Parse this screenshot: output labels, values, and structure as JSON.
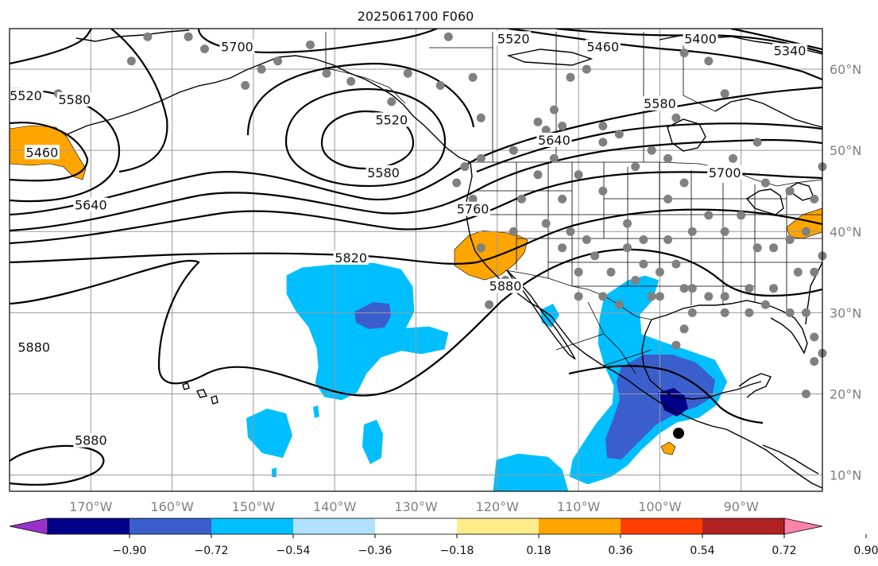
{
  "title": "2025061700 F060",
  "map": {
    "lon_range": [
      -180,
      -80
    ],
    "lat_range": [
      8,
      65
    ],
    "lon_ticks": [
      {
        "value": -170,
        "label": "170°W"
      },
      {
        "value": -160,
        "label": "160°W"
      },
      {
        "value": -150,
        "label": "150°W"
      },
      {
        "value": -140,
        "label": "140°W"
      },
      {
        "value": -130,
        "label": "130°W"
      },
      {
        "value": -120,
        "label": "120°W"
      },
      {
        "value": -110,
        "label": "110°W"
      },
      {
        "value": -100,
        "label": "100°W"
      },
      {
        "value": -90,
        "label": "90°W"
      }
    ],
    "lat_ticks": [
      {
        "value": 60,
        "label": "60°N"
      },
      {
        "value": 50,
        "label": "50°N"
      },
      {
        "value": 40,
        "label": "40°N"
      },
      {
        "value": 30,
        "label": "30°N"
      },
      {
        "value": 20,
        "label": "20°N"
      },
      {
        "value": 10,
        "label": "10°N"
      }
    ],
    "contour_labels": [
      {
        "text": "5700",
        "lon": -152,
        "lat": 62.5
      },
      {
        "text": "5520",
        "lon": -118,
        "lat": 63.5
      },
      {
        "text": "5460",
        "lon": -107,
        "lat": 62.5
      },
      {
        "text": "5400",
        "lon": -95,
        "lat": 63.5
      },
      {
        "text": "5340",
        "lon": -84,
        "lat": 62
      },
      {
        "text": "5520",
        "lon": -178,
        "lat": 56.5
      },
      {
        "text": "5580",
        "lon": -172,
        "lat": 56
      },
      {
        "text": "5460",
        "lon": -176,
        "lat": 49.5
      },
      {
        "text": "5520",
        "lon": -133,
        "lat": 53.5
      },
      {
        "text": "5580",
        "lon": -134,
        "lat": 47
      },
      {
        "text": "5640",
        "lon": -170,
        "lat": 43
      },
      {
        "text": "5640",
        "lon": -113,
        "lat": 51
      },
      {
        "text": "5580",
        "lon": -100,
        "lat": 55.5
      },
      {
        "text": "5700",
        "lon": -92,
        "lat": 47
      },
      {
        "text": "5760",
        "lon": -123,
        "lat": 42.5
      },
      {
        "text": "5820",
        "lon": -138,
        "lat": 36.5
      },
      {
        "text": "5880",
        "lon": -119,
        "lat": 33
      },
      {
        "text": "5880",
        "lon": -177,
        "lat": 25.5
      },
      {
        "text": "5880",
        "lon": -170,
        "lat": 14
      }
    ],
    "station_dot_color": "#808080",
    "stations": [
      [
        -174,
        57
      ],
      [
        -165,
        61
      ],
      [
        -163,
        64
      ],
      [
        -158,
        64
      ],
      [
        -156,
        62.5
      ],
      [
        -151,
        58
      ],
      [
        -149,
        60
      ],
      [
        -147,
        61
      ],
      [
        -143,
        63
      ],
      [
        -141,
        59.5
      ],
      [
        -138,
        58.5
      ],
      [
        -133,
        56
      ],
      [
        -131,
        59.5
      ],
      [
        -127,
        58
      ],
      [
        -126,
        64
      ],
      [
        -123,
        59
      ],
      [
        -122,
        54
      ],
      [
        -124,
        48
      ],
      [
        -122,
        49
      ],
      [
        -125,
        46
      ],
      [
        -123,
        44
      ],
      [
        -122,
        38
      ],
      [
        -119,
        34
      ],
      [
        -121,
        31
      ],
      [
        -118,
        40
      ],
      [
        -117,
        44
      ],
      [
        -118,
        50
      ],
      [
        -115,
        53.5
      ],
      [
        -114,
        52.5
      ],
      [
        -112,
        53
      ],
      [
        -113,
        55
      ],
      [
        -111,
        59
      ],
      [
        -109,
        60
      ],
      [
        -107,
        53
      ],
      [
        -105,
        52
      ],
      [
        -103,
        48
      ],
      [
        -101,
        50
      ],
      [
        -99,
        49
      ],
      [
        -98,
        54
      ],
      [
        -97,
        62
      ],
      [
        -94,
        61
      ],
      [
        -91,
        49
      ],
      [
        -92,
        57
      ],
      [
        -88,
        51
      ],
      [
        -87,
        46
      ],
      [
        -84,
        45
      ],
      [
        -81,
        44
      ],
      [
        -80,
        48
      ],
      [
        -113,
        49
      ],
      [
        -112,
        44
      ],
      [
        -114,
        41
      ],
      [
        -111,
        40
      ],
      [
        -110,
        47
      ],
      [
        -107,
        45
      ],
      [
        -104,
        41
      ],
      [
        -102,
        39
      ],
      [
        -99,
        44
      ],
      [
        -99,
        39
      ],
      [
        -97,
        46
      ],
      [
        -96,
        40
      ],
      [
        -94,
        42
      ],
      [
        -92,
        40
      ],
      [
        -90,
        42
      ],
      [
        -88,
        38
      ],
      [
        -86,
        38
      ],
      [
        -84,
        39
      ],
      [
        -82,
        40
      ],
      [
        -80,
        37
      ],
      [
        -112,
        38
      ],
      [
        -109,
        39
      ],
      [
        -106,
        35
      ],
      [
        -103,
        34
      ],
      [
        -101,
        32
      ],
      [
        -98,
        36
      ],
      [
        -96,
        33
      ],
      [
        -94,
        32
      ],
      [
        -92,
        32
      ],
      [
        -89,
        33
      ],
      [
        -86,
        33
      ],
      [
        -83,
        35
      ],
      [
        -81,
        35
      ],
      [
        -108,
        37
      ],
      [
        -110,
        35
      ],
      [
        -104,
        38
      ],
      [
        -102,
        36
      ],
      [
        -100,
        35
      ],
      [
        -97,
        33
      ],
      [
        -96,
        30
      ],
      [
        -92,
        30
      ],
      [
        -89,
        30
      ],
      [
        -87,
        31
      ],
      [
        -84,
        30
      ],
      [
        -82,
        30
      ],
      [
        -81,
        27
      ],
      [
        -81,
        24
      ],
      [
        -80,
        25
      ],
      [
        -110,
        32
      ],
      [
        -107,
        32
      ],
      [
        -105,
        31
      ],
      [
        -100,
        32
      ],
      [
        -97,
        28
      ],
      [
        -98,
        26
      ],
      [
        -82,
        20
      ],
      [
        -107,
        51
      ],
      [
        -115,
        47
      ]
    ],
    "colorbar": {
      "ticks": [
        "−0.90",
        "−0.72",
        "−0.54",
        "−0.36",
        "−0.18",
        "0.18",
        "0.36",
        "0.54",
        "0.72",
        "0.90"
      ],
      "colors": [
        "#9932cc",
        "#00008b",
        "#3a5fcd",
        "#00bfff",
        "#b0e2ff",
        "#ffffff",
        "#ffec8b",
        "#ffa500",
        "#ff3e00",
        "#b22222",
        "#ff82ab"
      ]
    }
  }
}
